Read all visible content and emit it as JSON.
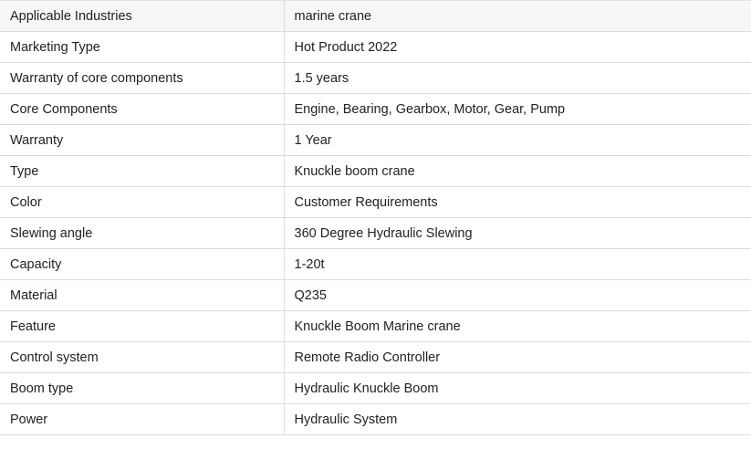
{
  "specs": [
    {
      "label": "Applicable Industries",
      "value": "marine crane"
    },
    {
      "label": "Marketing Type",
      "value": "Hot Product 2022"
    },
    {
      "label": "Warranty of core components",
      "value": "1.5 years"
    },
    {
      "label": "Core Components",
      "value": "Engine, Bearing, Gearbox, Motor, Gear, Pump"
    },
    {
      "label": "Warranty",
      "value": "1 Year"
    },
    {
      "label": "Type",
      "value": "Knuckle boom crane"
    },
    {
      "label": "Color",
      "value": "Customer Requirements"
    },
    {
      "label": "Slewing angle",
      "value": "360 Degree Hydraulic Slewing"
    },
    {
      "label": "Capacity",
      "value": "1-20t"
    },
    {
      "label": "Material",
      "value": "Q235"
    },
    {
      "label": "Feature",
      "value": "Knuckle Boom Marine crane"
    },
    {
      "label": "Control system",
      "value": "Remote Radio Controller"
    },
    {
      "label": "Boom type",
      "value": "Hydraulic Knuckle Boom"
    },
    {
      "label": "Power",
      "value": "Hydraulic System"
    }
  ]
}
